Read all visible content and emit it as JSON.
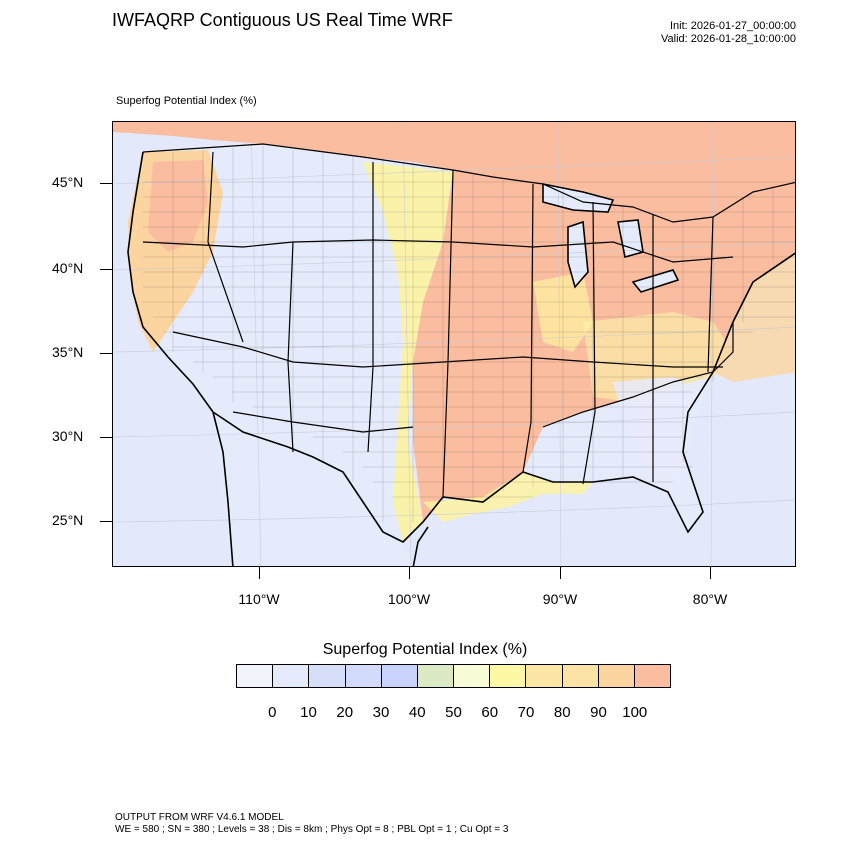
{
  "header": {
    "title": "IWFAQRP Contiguous US Real Time WRF",
    "init": "Init: 2026-01-27_00:00:00",
    "valid": "Valid: 2026-01-28_10:00:00"
  },
  "map": {
    "field_label": "Superfog Potential Index   (%)",
    "lat_labels": [
      "45°N",
      "40°N",
      "35°N",
      "30°N",
      "25°N"
    ],
    "lon_labels": [
      "110°W",
      "100°W",
      "90°W",
      "80°W"
    ],
    "colors": {
      "ocean": "#e3e9fb",
      "land_low": "#e6ebfb",
      "land_mid": "#d4dcfa",
      "yellow": "#fdf3a0",
      "tan": "#fbdf9f",
      "salmon": "#fbbd9f",
      "boundary": "#000000"
    }
  },
  "colorbar": {
    "title": "Superfog Potential Index  (%)",
    "labels": [
      "0",
      "10",
      "20",
      "30",
      "40",
      "50",
      "60",
      "70",
      "80",
      "90",
      "100"
    ],
    "colors": [
      "#f2f4fb",
      "#e6ebfb",
      "#d6defa",
      "#d2dbfb",
      "#c9d3fb",
      "#dbe9c4",
      "#f8fcd6",
      "#fdf8a6",
      "#fbe6a6",
      "#fbe2a5",
      "#fbd4a0",
      "#fbbd9f"
    ]
  },
  "footer": {
    "line1": "OUTPUT FROM WRF V4.6.1 MODEL",
    "line2": "WE = 580 ; SN = 380 ; Levels = 38 ; Dis = 8km ; Phys Opt = 8 ; PBL Opt = 1 ; Cu Opt = 3"
  }
}
